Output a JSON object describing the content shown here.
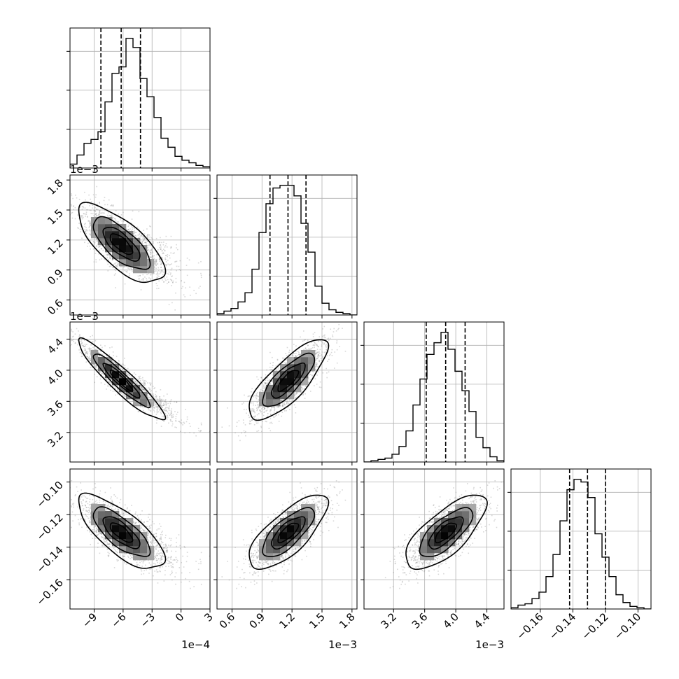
{
  "chart_data": {
    "type": "corner",
    "parameters": [
      {
        "range": [
          -11.5,
          3.0
        ],
        "ticks": [
          -9,
          -6,
          -3,
          0,
          3
        ],
        "tick_labels": [
          "−9",
          "−6",
          "−3",
          "0",
          "3"
        ],
        "offset_text": "1e−4",
        "mean": -6.2,
        "sd": 2.15,
        "skew": 0.35,
        "quantiles": [
          -8.3,
          -6.2,
          -4.2
        ],
        "hist_counts": [
          3,
          10,
          19,
          22,
          28,
          51,
          73,
          78,
          100,
          93,
          69,
          55,
          39,
          23,
          16,
          9,
          6,
          4,
          2,
          1
        ]
      },
      {
        "range": [
          0.45,
          1.85
        ],
        "ticks": [
          0.6,
          0.9,
          1.2,
          1.5,
          1.8
        ],
        "tick_labels": [
          "0.6",
          "0.9",
          "1.2",
          "1.5",
          "1.8"
        ],
        "offset_text": "1e−3",
        "mean": 1.16,
        "sd": 0.19,
        "skew": 0,
        "quantiles": [
          0.98,
          1.16,
          1.34
        ],
        "hist_counts": [
          1,
          3,
          5,
          10,
          17,
          35,
          63,
          85,
          97,
          99,
          99,
          91,
          70,
          48,
          22,
          9,
          4,
          2,
          1,
          0
        ]
      },
      {
        "range": [
          2.82,
          4.62
        ],
        "ticks": [
          3.2,
          3.6,
          4.0,
          4.4
        ],
        "tick_labels": [
          "3.2",
          "3.6",
          "4.0",
          "4.4"
        ],
        "offset_text": "1e−3",
        "mean": 3.87,
        "sd": 0.25,
        "skew": 0,
        "quantiles": [
          3.62,
          3.87,
          4.12
        ],
        "hist_counts": [
          0,
          1,
          2,
          3,
          6,
          12,
          24,
          44,
          64,
          83,
          92,
          100,
          87,
          70,
          55,
          39,
          19,
          11,
          4,
          1
        ]
      },
      {
        "range": [
          -0.178,
          -0.092
        ],
        "ticks": [
          -0.16,
          -0.14,
          -0.12,
          -0.1
        ],
        "tick_labels": [
          "−0.16",
          "−0.14",
          "−0.12",
          "−0.10"
        ],
        "offset_text": "",
        "mean": -0.131,
        "sd": 0.011,
        "skew": 0,
        "quantiles": [
          -0.142,
          -0.131,
          -0.12
        ],
        "hist_counts": [
          1,
          3,
          4,
          8,
          13,
          25,
          42,
          68,
          92,
          100,
          98,
          86,
          58,
          40,
          25,
          11,
          5,
          2,
          1,
          0
        ]
      }
    ],
    "correlations": [
      [
        1,
        -0.72,
        -0.93,
        -0.74
      ],
      [
        -0.72,
        1,
        0.79,
        0.74
      ],
      [
        -0.93,
        0.79,
        1,
        0.72
      ],
      [
        -0.74,
        0.74,
        0.72,
        1
      ]
    ],
    "grid": true,
    "contour_levels_sigma": [
      0.5,
      1.0,
      1.5,
      2.0
    ]
  }
}
